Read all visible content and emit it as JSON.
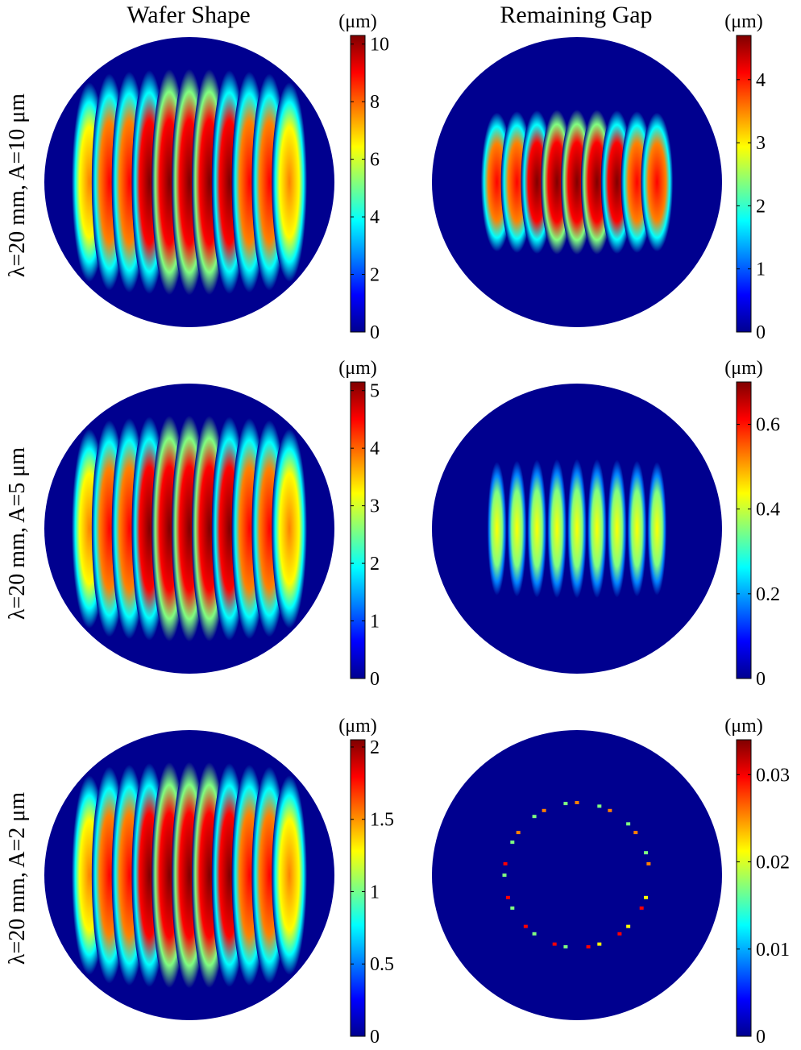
{
  "columns": [
    "Wafer Shape",
    "Remaining Gap"
  ],
  "rows": [
    "λ=20 mm, A=10 μm",
    "λ=20 mm, A=5 μm",
    "λ=20 mm, A=2 μm"
  ],
  "unit_label": "(μm)",
  "colormap": [
    "#00008f",
    "#0000ff",
    "#0080ff",
    "#00ffff",
    "#80ff80",
    "#ffff00",
    "#ff8000",
    "#ff0000",
    "#800000"
  ],
  "background_color": "#00008f",
  "chart_data": [
    {
      "type": "heatmap",
      "title": "Wafer Shape",
      "row": "λ=20 mm, A=10 μm",
      "colorbar": {
        "unit": "(μm)",
        "range": [
          0,
          10.3
        ],
        "ticks": [
          0,
          2,
          4,
          6,
          8,
          10
        ],
        "tick_labels": [
          "0",
          "2",
          "4",
          "6",
          "8",
          "10"
        ]
      },
      "pattern": "stripes",
      "fringes": 11,
      "peak": 10.3,
      "envelope_radius": 0.78,
      "stripe_width": 0.55
    },
    {
      "type": "heatmap",
      "title": "Remaining Gap",
      "row": "λ=20 mm, A=10 μm",
      "colorbar": {
        "unit": "(μm)",
        "range": [
          0,
          4.7
        ],
        "ticks": [
          0,
          1,
          2,
          3,
          4
        ],
        "tick_labels": [
          "0",
          "1",
          "2",
          "3",
          "4"
        ]
      },
      "pattern": "stripes",
      "fringes": 9,
      "peak": 4.7,
      "envelope_radius": 0.5,
      "stripe_width": 0.5
    },
    {
      "type": "heatmap",
      "title": "Wafer Shape",
      "row": "λ=20 mm, A=5 μm",
      "colorbar": {
        "unit": "(μm)",
        "range": [
          0,
          5.15
        ],
        "ticks": [
          0,
          1,
          2,
          3,
          4,
          5
        ],
        "tick_labels": [
          "0",
          "1",
          "2",
          "3",
          "4",
          "5"
        ]
      },
      "pattern": "stripes",
      "fringes": 11,
      "peak": 5.15,
      "envelope_radius": 0.78,
      "stripe_width": 0.55
    },
    {
      "type": "heatmap",
      "title": "Remaining Gap",
      "row": "λ=20 mm, A=5 μm",
      "colorbar": {
        "unit": "(μm)",
        "range": [
          0,
          0.7
        ],
        "ticks": [
          0,
          0.2,
          0.4,
          0.6
        ],
        "tick_labels": [
          "0",
          "0.2",
          "0.4",
          "0.6"
        ]
      },
      "pattern": "stripes",
      "fringes": 9,
      "peak": 0.46,
      "envelope_radius": 0.48,
      "stripe_width": 0.3
    },
    {
      "type": "heatmap",
      "title": "Wafer Shape",
      "row": "λ=20 mm, A=2 μm",
      "colorbar": {
        "unit": "(μm)",
        "range": [
          0,
          2.05
        ],
        "ticks": [
          0,
          0.5,
          1,
          1.5,
          2
        ],
        "tick_labels": [
          "0",
          "0.5",
          "1",
          "1.5",
          "2"
        ]
      },
      "pattern": "stripes",
      "fringes": 11,
      "peak": 2.05,
      "envelope_radius": 0.78,
      "stripe_width": 0.55
    },
    {
      "type": "heatmap",
      "title": "Remaining Gap",
      "row": "λ=20 mm, A=2 μm",
      "colorbar": {
        "unit": "(μm)",
        "range": [
          0,
          0.034
        ],
        "ticks": [
          0,
          0.01,
          0.02,
          0.03
        ],
        "tick_labels": [
          "0",
          "0.01",
          "0.02",
          "0.03"
        ]
      },
      "pattern": "ring",
      "ring_radius": 0.5,
      "peak": 0.03
    }
  ]
}
